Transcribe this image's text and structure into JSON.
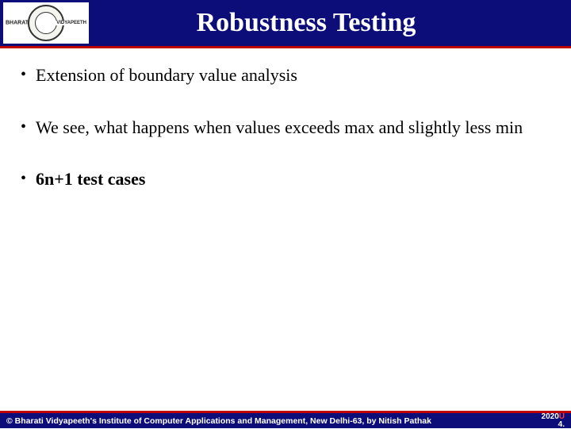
{
  "header": {
    "title": "Robustness Testing",
    "logo": {
      "banner_left": "BHARATI",
      "banner_right": "VIDYAPEETH"
    },
    "bar_color": "#0d0d7a",
    "accent_color": "#c00000",
    "title_color": "#ffffff",
    "title_fontsize": 34
  },
  "bullets": [
    {
      "text": "Extension of boundary value analysis",
      "bold": false
    },
    {
      "text": "We see, what happens when values exceeds max and slightly less min",
      "bold": false
    },
    {
      "text": "6n+1 test cases",
      "bold": true
    }
  ],
  "content_style": {
    "fontsize": 22,
    "text_color": "#000000",
    "bullet_spacing": 38
  },
  "footer": {
    "copyright": "© Bharati Vidyapeeth's Institute of Computer Applications and Management, New Delhi-63, by  Nitish Pathak",
    "year": "2020",
    "u_char": "U",
    "page_num": "4.",
    "bar_color": "#0d0d7a",
    "accent_color": "#c00000"
  }
}
